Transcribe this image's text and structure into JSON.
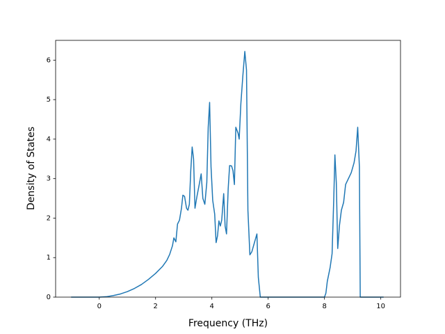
{
  "chart_data": {
    "type": "line",
    "xlabel": "Frequency (THz)",
    "ylabel": "Density of States",
    "xlim": [
      -1.55,
      10.7
    ],
    "ylim": [
      0,
      6.5
    ],
    "xticks": [
      0,
      2,
      4,
      6,
      8,
      10
    ],
    "yticks": [
      0,
      1,
      2,
      3,
      4,
      5,
      6
    ],
    "series": [
      {
        "color": "#1f77b4",
        "x": [
          -1,
          -0.5,
          0,
          0.25,
          0.5,
          0.75,
          1,
          1.25,
          1.5,
          1.75,
          2,
          2.25,
          2.4,
          2.5,
          2.6,
          2.65,
          2.72,
          2.78,
          2.85,
          2.92,
          2.97,
          3.03,
          3.1,
          3.15,
          3.2,
          3.25,
          3.3,
          3.35,
          3.4,
          3.47,
          3.55,
          3.62,
          3.68,
          3.75,
          3.82,
          3.87,
          3.92,
          3.97,
          4.03,
          4.1,
          4.15,
          4.2,
          4.25,
          4.3,
          4.35,
          4.42,
          4.47,
          4.52,
          4.58,
          4.63,
          4.7,
          4.75,
          4.8,
          4.85,
          4.93,
          4.97,
          5.03,
          5.1,
          5.17,
          5.23,
          5.28,
          5.35,
          5.42,
          5.5,
          5.6,
          5.65,
          5.72,
          6,
          7,
          8,
          8.05,
          8.1,
          8.2,
          8.27,
          8.33,
          8.37,
          8.42,
          8.47,
          8.53,
          8.6,
          8.68,
          8.75,
          8.85,
          8.95,
          9.05,
          9.12,
          9.18,
          9.24,
          9.27,
          9.5,
          10,
          10.1
        ],
        "values": [
          0,
          0,
          0,
          0.01,
          0.04,
          0.08,
          0.14,
          0.22,
          0.32,
          0.45,
          0.6,
          0.78,
          0.93,
          1.08,
          1.3,
          1.5,
          1.4,
          1.85,
          1.95,
          2.25,
          2.58,
          2.55,
          2.25,
          2.2,
          2.35,
          3.2,
          3.8,
          3.5,
          2.25,
          2.55,
          2.85,
          3.12,
          2.5,
          2.35,
          2.9,
          4.3,
          4.93,
          3.3,
          2.45,
          2.1,
          1.38,
          1.55,
          1.93,
          1.8,
          1.95,
          2.62,
          1.8,
          1.6,
          2.75,
          3.33,
          3.32,
          3.2,
          2.85,
          4.3,
          4.15,
          4.0,
          4.9,
          5.6,
          6.22,
          5.75,
          2.2,
          1.07,
          1.15,
          1.35,
          1.6,
          0.5,
          0,
          0,
          0,
          0,
          0.1,
          0.4,
          0.75,
          1.1,
          2.5,
          3.6,
          2.9,
          1.23,
          1.8,
          2.2,
          2.4,
          2.85,
          3.0,
          3.15,
          3.4,
          3.7,
          4.3,
          3.3,
          0,
          0,
          0,
          0
        ]
      }
    ]
  }
}
